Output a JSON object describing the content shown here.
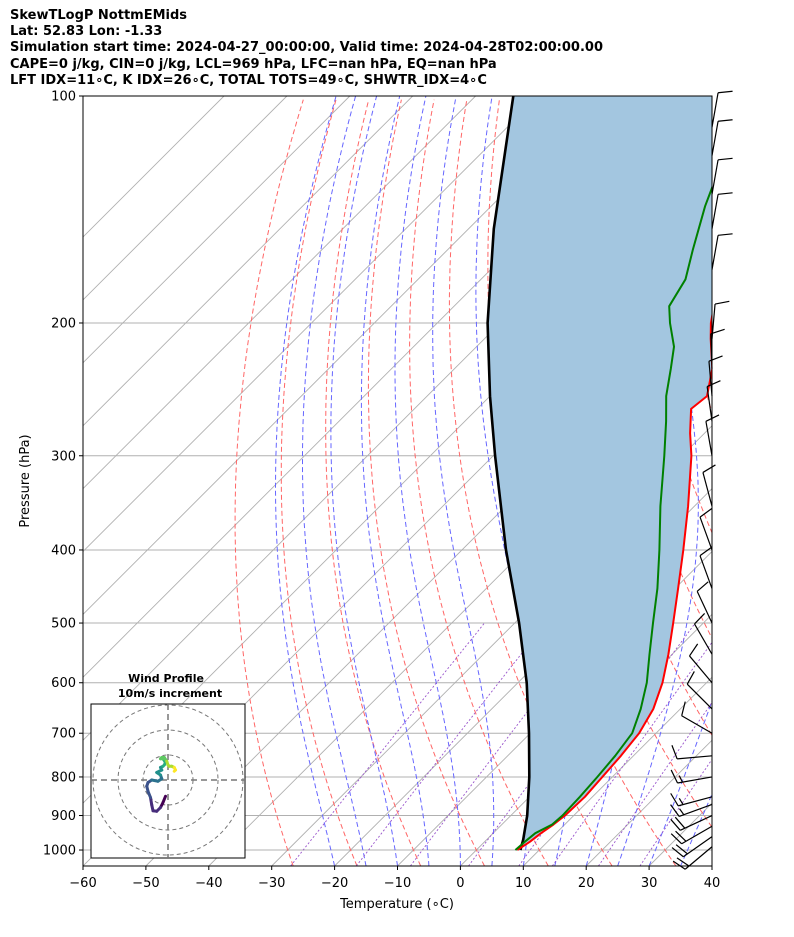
{
  "header": {
    "line1": "SkewTLogP NottmEMids",
    "line2": "Lat: 52.83   Lon: -1.33",
    "line3": "Simulation start time: 2024-04-27_00:00:00, Valid time: 2024-04-28T02:00:00.00",
    "line4": "CAPE=0 j/kg, CIN=0 j/kg, LCL=969 hPa, LFC=nan hPa, EQ=nan hPa",
    "line5": "LFT IDX=11∘C, K IDX=26∘C, TOTAL TOTS=49∘C, SHWTR_IDX=4∘C"
  },
  "chart_data": {
    "type": "line",
    "title": "SkewTLogP NottmEMids",
    "xlabel": "Temperature (∘C)",
    "ylabel": "Pressure (hPa)",
    "xlim": [
      -60,
      40
    ],
    "ylim": [
      1050,
      100
    ],
    "y_scale": "log",
    "skew_deg": 45,
    "grid": true,
    "x_ticks": [
      -60,
      -50,
      -40,
      -30,
      -20,
      -10,
      0,
      10,
      20,
      30,
      40
    ],
    "x_tick_labels": [
      "−60",
      "−50",
      "−40",
      "−30",
      "−20",
      "−10",
      "0",
      "10",
      "20",
      "30",
      "40"
    ],
    "y_ticks": [
      1000,
      900,
      800,
      700,
      600,
      500,
      400,
      300,
      200,
      100
    ],
    "y_tick_labels": [
      "1000",
      "900",
      "800",
      "700",
      "600",
      "500",
      "400",
      "300",
      "200",
      "100"
    ],
    "colors": {
      "temperature": "#ff0000",
      "dewpoint": "#008000",
      "parcel": "#000000",
      "shade": "#a3c6e0",
      "isotherm": "#b0b0b0",
      "dry_adiabat": "#ff6666",
      "moist_adiabat": "#6666ff",
      "mixing_ratio": "#9955cc"
    },
    "series": [
      {
        "key": "temperature",
        "points": [
          [
            1000,
            6.5
          ],
          [
            975,
            7.2
          ],
          [
            950,
            7.6
          ],
          [
            925,
            8.2
          ],
          [
            900,
            8.6
          ],
          [
            850,
            8.8
          ],
          [
            800,
            8.4
          ],
          [
            750,
            8.0
          ],
          [
            700,
            7.3
          ],
          [
            650,
            5.7
          ],
          [
            600,
            3.0
          ],
          [
            550,
            -0.6
          ],
          [
            500,
            -4.8
          ],
          [
            450,
            -9.5
          ],
          [
            400,
            -14.8
          ],
          [
            350,
            -21.0
          ],
          [
            300,
            -28.5
          ],
          [
            280,
            -32.3
          ],
          [
            260,
            -36.0
          ],
          [
            250,
            -35.5
          ],
          [
            230,
            -39.0
          ],
          [
            210,
            -44.0
          ],
          [
            200,
            -46.5
          ],
          [
            180,
            -51.0
          ],
          [
            160,
            -55.0
          ],
          [
            140,
            -59.5
          ],
          [
            120,
            -65.0
          ],
          [
            110,
            -68.5
          ],
          [
            100,
            -72.0
          ]
        ]
      },
      {
        "key": "dewpoint",
        "points": [
          [
            1000,
            6.2
          ],
          [
            975,
            6.4
          ],
          [
            950,
            6.7
          ],
          [
            925,
            8.0
          ],
          [
            900,
            8.2
          ],
          [
            850,
            8.0
          ],
          [
            800,
            7.6
          ],
          [
            750,
            7.1
          ],
          [
            700,
            6.2
          ],
          [
            650,
            3.7
          ],
          [
            600,
            0.5
          ],
          [
            550,
            -3.6
          ],
          [
            500,
            -8.0
          ],
          [
            450,
            -12.8
          ],
          [
            400,
            -18.6
          ],
          [
            350,
            -25.4
          ],
          [
            300,
            -32.8
          ],
          [
            270,
            -38.0
          ],
          [
            250,
            -42.0
          ],
          [
            230,
            -45.6
          ],
          [
            215,
            -48.6
          ],
          [
            200,
            -53.0
          ],
          [
            190,
            -55.8
          ],
          [
            175,
            -57.5
          ],
          [
            160,
            -61.0
          ],
          [
            140,
            -66.0
          ],
          [
            120,
            -71.0
          ],
          [
            100,
            -78.0
          ]
        ]
      },
      {
        "key": "parcel",
        "points": [
          [
            1000,
            7.0
          ],
          [
            969,
            5.8
          ],
          [
            900,
            2.6
          ],
          [
            800,
            -3.2
          ],
          [
            700,
            -10.2
          ],
          [
            600,
            -18.6
          ],
          [
            500,
            -29.3
          ],
          [
            400,
            -43.0
          ],
          [
            300,
            -59.7
          ],
          [
            250,
            -70.0
          ],
          [
            200,
            -82.0
          ],
          [
            150,
            -96.0
          ],
          [
            100,
            -114.0
          ]
        ]
      }
    ],
    "wind_barbs": [
      {
        "p": 990,
        "speed_kt": 20,
        "dir_deg": 230
      },
      {
        "p": 960,
        "speed_kt": 22,
        "dir_deg": 235
      },
      {
        "p": 930,
        "speed_kt": 22,
        "dir_deg": 240
      },
      {
        "p": 900,
        "speed_kt": 20,
        "dir_deg": 245
      },
      {
        "p": 870,
        "speed_kt": 18,
        "dir_deg": 250
      },
      {
        "p": 850,
        "speed_kt": 18,
        "dir_deg": 255
      },
      {
        "p": 800,
        "speed_kt": 15,
        "dir_deg": 260
      },
      {
        "p": 750,
        "speed_kt": 12,
        "dir_deg": 265
      },
      {
        "p": 700,
        "speed_kt": 12,
        "dir_deg": 300
      },
      {
        "p": 650,
        "speed_kt": 12,
        "dir_deg": 315
      },
      {
        "p": 600,
        "speed_kt": 12,
        "dir_deg": 320
      },
      {
        "p": 550,
        "speed_kt": 12,
        "dir_deg": 330
      },
      {
        "p": 500,
        "speed_kt": 10,
        "dir_deg": 335
      },
      {
        "p": 450,
        "speed_kt": 10,
        "dir_deg": 340
      },
      {
        "p": 400,
        "speed_kt": 10,
        "dir_deg": 340
      },
      {
        "p": 350,
        "speed_kt": 10,
        "dir_deg": 345
      },
      {
        "p": 300,
        "speed_kt": 12,
        "dir_deg": 350
      },
      {
        "p": 270,
        "speed_kt": 12,
        "dir_deg": 352
      },
      {
        "p": 250,
        "speed_kt": 10,
        "dir_deg": 355
      },
      {
        "p": 230,
        "speed_kt": 10,
        "dir_deg": 358
      },
      {
        "p": 210,
        "speed_kt": 10,
        "dir_deg": 5
      },
      {
        "p": 170,
        "speed_kt": 10,
        "dir_deg": 10
      },
      {
        "p": 150,
        "speed_kt": 10,
        "dir_deg": 10
      },
      {
        "p": 135,
        "speed_kt": 10,
        "dir_deg": 10
      },
      {
        "p": 120,
        "speed_kt": 10,
        "dir_deg": 10
      },
      {
        "p": 110,
        "speed_kt": 10,
        "dir_deg": 10
      }
    ]
  },
  "hodograph": {
    "title": "Wind Profile",
    "subtitle": "10m/s increment",
    "ring_step_ms": 10,
    "rings": 3,
    "track_uv": [
      [
        -1.0,
        -6.5
      ],
      [
        -2.0,
        -9.0
      ],
      [
        -3.0,
        -11.0
      ],
      [
        -4.5,
        -12.5
      ],
      [
        -6.0,
        -12.3
      ],
      [
        -6.5,
        -10.0
      ],
      [
        -7.0,
        -7.0
      ],
      [
        -8.0,
        -4.5
      ],
      [
        -8.5,
        -2.5
      ],
      [
        -8.0,
        -1.0
      ],
      [
        -6.5,
        0.0
      ],
      [
        -4.0,
        -0.5
      ],
      [
        -2.5,
        0.5
      ],
      [
        -3.0,
        2.0
      ],
      [
        -4.5,
        3.0
      ],
      [
        -2.5,
        4.0
      ],
      [
        -3.0,
        5.0
      ],
      [
        -2.0,
        5.5
      ],
      [
        -1.5,
        6.0
      ],
      [
        -1.0,
        7.0
      ],
      [
        -2.0,
        8.5
      ],
      [
        -3.0,
        8.5
      ],
      [
        -2.5,
        9.0
      ],
      [
        -1.5,
        9.0
      ],
      [
        -0.5,
        7.5
      ],
      [
        0.0,
        6.0
      ],
      [
        0.5,
        5.5
      ],
      [
        1.5,
        5.5
      ],
      [
        2.5,
        5.0
      ],
      [
        3.0,
        4.0
      ],
      [
        2.5,
        3.5
      ]
    ]
  }
}
